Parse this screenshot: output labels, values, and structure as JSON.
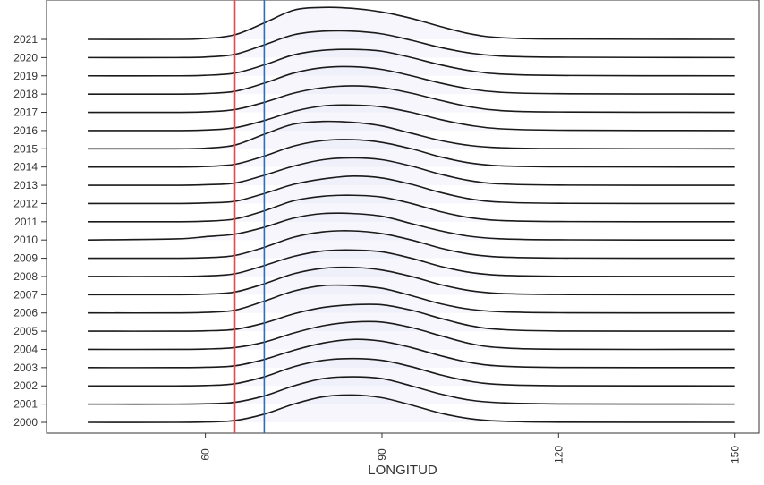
{
  "chart_data": {
    "type": "ridgeline",
    "x_label": "LONGITUD",
    "x": [
      40,
      55,
      60,
      65,
      70,
      75,
      80,
      85,
      90,
      95,
      100,
      105,
      110,
      120,
      150
    ],
    "xlim": [
      33,
      154
    ],
    "xticks": [
      60,
      90,
      120,
      150
    ],
    "line_color": "#1a1a1a",
    "fill_color": "#e4e4f6",
    "vlines": [
      {
        "x": 65,
        "color": "#e8474b"
      },
      {
        "x": 70,
        "color": "#2f6db5"
      }
    ],
    "series": [
      {
        "name": "2000",
        "values": [
          0,
          0,
          0.02,
          0.1,
          0.45,
          1.0,
          1.4,
          1.5,
          1.35,
          0.95,
          0.5,
          0.2,
          0.07,
          0.01,
          0
        ]
      },
      {
        "name": "2001",
        "values": [
          0,
          0,
          0.02,
          0.1,
          0.45,
          1.0,
          1.4,
          1.5,
          1.4,
          1.0,
          0.55,
          0.22,
          0.08,
          0.01,
          0
        ]
      },
      {
        "name": "2002",
        "values": [
          0,
          0,
          0.02,
          0.12,
          0.5,
          1.05,
          1.4,
          1.5,
          1.4,
          1.05,
          0.6,
          0.25,
          0.08,
          0.01,
          0
        ]
      },
      {
        "name": "2003",
        "values": [
          0,
          0,
          0.02,
          0.1,
          0.45,
          0.95,
          1.35,
          1.55,
          1.45,
          1.1,
          0.65,
          0.28,
          0.09,
          0.01,
          0
        ]
      },
      {
        "name": "2004",
        "values": [
          0,
          0,
          0.02,
          0.1,
          0.4,
          0.9,
          1.3,
          1.5,
          1.5,
          1.2,
          0.75,
          0.32,
          0.1,
          0.01,
          0
        ]
      },
      {
        "name": "2005",
        "values": [
          0,
          0,
          0.02,
          0.1,
          0.45,
          0.95,
          1.3,
          1.45,
          1.45,
          1.15,
          0.7,
          0.3,
          0.1,
          0.01,
          0
        ]
      },
      {
        "name": "2006",
        "values": [
          0,
          0,
          0.03,
          0.15,
          0.65,
          1.2,
          1.5,
          1.5,
          1.35,
          0.95,
          0.5,
          0.2,
          0.07,
          0.01,
          0
        ]
      },
      {
        "name": "2007",
        "values": [
          0,
          0,
          0.03,
          0.15,
          0.6,
          1.15,
          1.45,
          1.5,
          1.35,
          1.0,
          0.55,
          0.22,
          0.07,
          0.01,
          0
        ]
      },
      {
        "name": "2008",
        "values": [
          0,
          0,
          0.03,
          0.15,
          0.6,
          1.1,
          1.4,
          1.45,
          1.35,
          1.0,
          0.55,
          0.22,
          0.07,
          0.01,
          0
        ]
      },
      {
        "name": "2009",
        "values": [
          0,
          0,
          0.03,
          0.15,
          0.6,
          1.15,
          1.45,
          1.5,
          1.35,
          1.0,
          0.55,
          0.22,
          0.07,
          0.01,
          0
        ]
      },
      {
        "name": "2010",
        "values": [
          0,
          0.06,
          0.18,
          0.32,
          0.7,
          1.2,
          1.45,
          1.45,
          1.3,
          0.9,
          0.5,
          0.2,
          0.07,
          0.01,
          0
        ]
      },
      {
        "name": "2011",
        "values": [
          0,
          0,
          0.03,
          0.15,
          0.6,
          1.15,
          1.4,
          1.45,
          1.35,
          1.0,
          0.55,
          0.22,
          0.07,
          0.01,
          0
        ]
      },
      {
        "name": "2012",
        "values": [
          0,
          0,
          0.03,
          0.12,
          0.55,
          1.05,
          1.35,
          1.5,
          1.4,
          1.05,
          0.6,
          0.25,
          0.08,
          0.01,
          0
        ]
      },
      {
        "name": "2013",
        "values": [
          0,
          0,
          0.03,
          0.12,
          0.55,
          1.05,
          1.4,
          1.5,
          1.4,
          1.05,
          0.6,
          0.25,
          0.08,
          0.01,
          0
        ]
      },
      {
        "name": "2014",
        "values": [
          0,
          0,
          0.03,
          0.15,
          0.6,
          1.15,
          1.45,
          1.5,
          1.35,
          1.0,
          0.55,
          0.22,
          0.07,
          0.01,
          0
        ]
      },
      {
        "name": "2015",
        "values": [
          0,
          0,
          0.03,
          0.2,
          0.8,
          1.35,
          1.5,
          1.45,
          1.25,
          0.85,
          0.45,
          0.18,
          0.06,
          0.01,
          0
        ]
      },
      {
        "name": "2016",
        "values": [
          0,
          0,
          0.03,
          0.15,
          0.55,
          1.05,
          1.35,
          1.4,
          1.3,
          1.0,
          0.6,
          0.28,
          0.1,
          0.02,
          0
        ]
      },
      {
        "name": "2017",
        "values": [
          0,
          0,
          0.03,
          0.15,
          0.55,
          1.05,
          1.35,
          1.45,
          1.35,
          1.05,
          0.65,
          0.3,
          0.1,
          0.02,
          0
        ]
      },
      {
        "name": "2018",
        "values": [
          0,
          0,
          0.03,
          0.15,
          0.6,
          1.15,
          1.45,
          1.5,
          1.35,
          1.0,
          0.6,
          0.28,
          0.1,
          0.02,
          0
        ]
      },
      {
        "name": "2019",
        "values": [
          0,
          0,
          0.03,
          0.15,
          0.6,
          1.15,
          1.4,
          1.45,
          1.35,
          1.0,
          0.6,
          0.28,
          0.1,
          0.02,
          0
        ]
      },
      {
        "name": "2020",
        "values": [
          0,
          0,
          0.03,
          0.18,
          0.7,
          1.25,
          1.45,
          1.45,
          1.3,
          0.95,
          0.55,
          0.25,
          0.09,
          0.02,
          0
        ]
      },
      {
        "name": "2021",
        "values": [
          0,
          0,
          0.05,
          0.25,
          0.9,
          1.6,
          1.75,
          1.7,
          1.5,
          1.15,
          0.7,
          0.3,
          0.1,
          0.02,
          0
        ]
      }
    ]
  }
}
